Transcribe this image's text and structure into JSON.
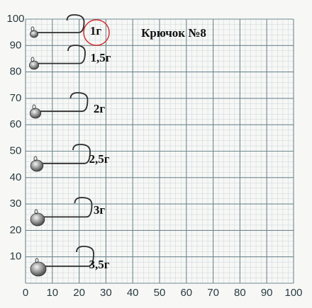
{
  "title": "Крючок №8",
  "axes": {
    "x_ticks": [
      0,
      10,
      20,
      30,
      40,
      50,
      60,
      70,
      80,
      90,
      100
    ],
    "y_ticks": [
      0,
      10,
      20,
      30,
      40,
      50,
      60,
      70,
      80,
      90,
      100
    ]
  },
  "jigs": [
    {
      "label": "1г"
    },
    {
      "label": "1,5г"
    },
    {
      "label": "2г"
    },
    {
      "label": "2,5г"
    },
    {
      "label": "3г"
    },
    {
      "label": "3,5г"
    }
  ]
}
